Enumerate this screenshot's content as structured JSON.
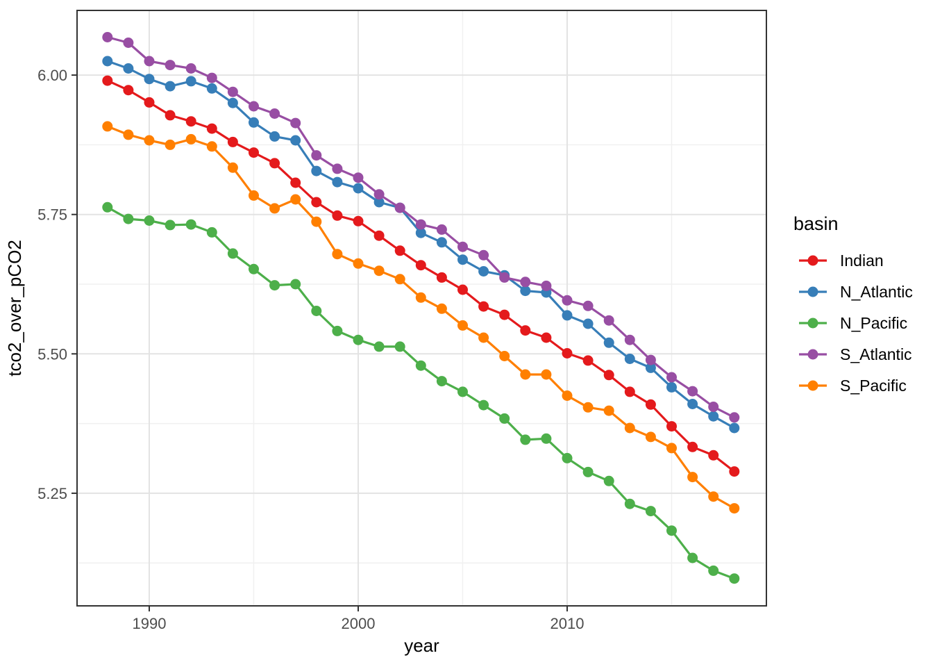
{
  "chart_data": {
    "type": "line",
    "title": "",
    "xlabel": "year",
    "ylabel": "tco2_over_pCO2",
    "legend_title": "basin",
    "legend_position": "right",
    "grid": true,
    "x": [
      1988,
      1989,
      1990,
      1991,
      1992,
      1993,
      1994,
      1995,
      1996,
      1997,
      1998,
      1999,
      2000,
      2001,
      2002,
      2003,
      2004,
      2005,
      2006,
      2007,
      2008,
      2009,
      2010,
      2011,
      2012,
      2013,
      2014,
      2015,
      2016,
      2017,
      2018
    ],
    "series": [
      {
        "name": "Indian",
        "color": "#E41A1C",
        "values": [
          5.99,
          5.973,
          5.951,
          5.928,
          5.917,
          5.904,
          5.88,
          5.861,
          5.842,
          5.807,
          5.772,
          5.748,
          5.738,
          5.712,
          5.685,
          5.659,
          5.637,
          5.615,
          5.585,
          5.57,
          5.542,
          5.529,
          5.501,
          5.488,
          5.462,
          5.432,
          5.409,
          5.37,
          5.333,
          5.318,
          5.289
        ]
      },
      {
        "name": "N_Atlantic",
        "color": "#377EB8",
        "values": [
          6.025,
          6.012,
          5.993,
          5.98,
          5.989,
          5.976,
          5.95,
          5.915,
          5.89,
          5.883,
          5.828,
          5.808,
          5.797,
          5.772,
          5.762,
          5.717,
          5.7,
          5.669,
          5.648,
          5.641,
          5.613,
          5.61,
          5.569,
          5.554,
          5.52,
          5.491,
          5.475,
          5.44,
          5.41,
          5.388,
          5.367
        ]
      },
      {
        "name": "N_Pacific",
        "color": "#4DAF4A",
        "values": [
          5.763,
          5.742,
          5.739,
          5.731,
          5.732,
          5.718,
          5.68,
          5.652,
          5.623,
          5.625,
          5.577,
          5.541,
          5.525,
          5.513,
          5.513,
          5.479,
          5.451,
          5.432,
          5.408,
          5.384,
          5.346,
          5.348,
          5.313,
          5.288,
          5.272,
          5.231,
          5.218,
          5.183,
          5.134,
          5.111,
          5.097
        ]
      },
      {
        "name": "S_Atlantic",
        "color": "#984EA3",
        "values": [
          6.068,
          6.058,
          6.025,
          6.018,
          6.012,
          5.995,
          5.97,
          5.944,
          5.931,
          5.914,
          5.856,
          5.832,
          5.816,
          5.786,
          5.762,
          5.732,
          5.723,
          5.692,
          5.677,
          5.637,
          5.629,
          5.622,
          5.596,
          5.586,
          5.56,
          5.525,
          5.489,
          5.458,
          5.433,
          5.405,
          5.386
        ]
      },
      {
        "name": "S_Pacific",
        "color": "#FF7F00",
        "values": [
          5.908,
          5.893,
          5.883,
          5.875,
          5.885,
          5.872,
          5.834,
          5.784,
          5.761,
          5.777,
          5.737,
          5.679,
          5.662,
          5.649,
          5.634,
          5.601,
          5.581,
          5.551,
          5.529,
          5.496,
          5.463,
          5.463,
          5.425,
          5.404,
          5.398,
          5.367,
          5.351,
          5.331,
          5.279,
          5.244,
          5.223
        ]
      }
    ],
    "x_ticks": {
      "values": [
        1990,
        2000,
        2010
      ],
      "labels": [
        "1990",
        "2000",
        "2010"
      ]
    },
    "y_ticks": {
      "values": [
        5.25,
        5.5,
        5.75,
        6.0
      ],
      "labels": [
        "5.25",
        "5.50",
        "5.75",
        "6.00"
      ]
    },
    "x_minor_ticks": [
      1995,
      2005,
      2015
    ],
    "y_minor_ticks": [
      5.125,
      5.375,
      5.625,
      5.875
    ],
    "x_range": [
      1986.545,
      2019.535
    ],
    "y_range": [
      5.048,
      6.116
    ],
    "theme": {
      "background": "#FFFFFF",
      "panel_background": "#FFFFFF",
      "panel_border": "#333333",
      "grid_major": "#E3E3E3",
      "grid_minor": "#F0F0F0",
      "tick_mark": "#333333",
      "axis_text": "#4D4D4D",
      "title_text": "#000000"
    }
  }
}
